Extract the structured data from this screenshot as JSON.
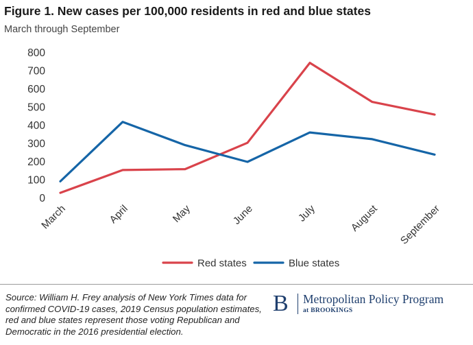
{
  "figure": {
    "title": "Figure 1. New cases per 100,000 residents in red and blue states",
    "subtitle": "March through September"
  },
  "chart_data": {
    "type": "line",
    "title": "Figure 1. New cases per 100,000 residents in red and blue states",
    "subtitle": "March through September",
    "xlabel": "",
    "ylabel": "",
    "categories": [
      "March",
      "April",
      "May",
      "June",
      "July",
      "August",
      "September"
    ],
    "series": [
      {
        "name": "Red states",
        "color": "#d9434b",
        "values": [
          30,
          155,
          160,
          305,
          745,
          530,
          460
        ]
      },
      {
        "name": "Blue states",
        "color": "#1565a7",
        "values": [
          93,
          420,
          292,
          200,
          362,
          325,
          240
        ]
      }
    ],
    "ylim": [
      0,
      800
    ],
    "yticks": [
      0,
      100,
      200,
      300,
      400,
      500,
      600,
      700,
      800
    ],
    "grid": false,
    "legend_position": "bottom"
  },
  "footer": {
    "source": "Source: William H. Frey analysis of New York Times data for confirmed COVID-19 cases, 2019  Census population estimates, red and blue states represent those voting Republican and Democratic in the 2016 presidential election.",
    "logo_letter": "B",
    "logo_program": "Metropolitan Policy Program",
    "logo_at": "at BROOKINGS"
  }
}
